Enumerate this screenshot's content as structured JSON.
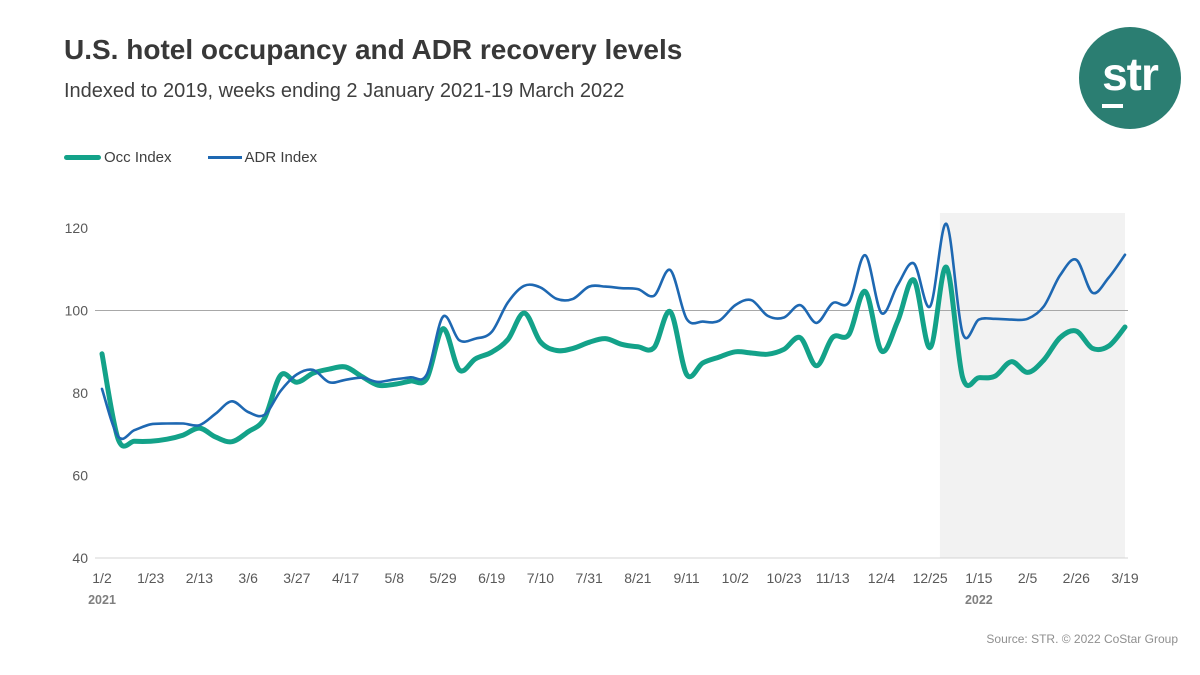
{
  "header": {
    "title": "U.S. hotel occupancy and ADR recovery levels",
    "subtitle": "Indexed to 2019, weeks ending 2 January 2021-19 March 2022"
  },
  "logo": {
    "text": "str",
    "color": "#2b7e72"
  },
  "legend": [
    {
      "label": "Occ Index",
      "color": "#13a289"
    },
    {
      "label": "ADR Index",
      "color": "#1e68b2"
    }
  ],
  "footer": {
    "source": "Source: STR. © 2022 CoStar Group"
  },
  "chart_data": {
    "type": "line",
    "title": "U.S. hotel occupancy and ADR recovery levels",
    "subtitle": "Indexed to 2019, weeks ending 2 January 2021-19 March 2022",
    "xlabel": "",
    "ylabel": "",
    "ylim": [
      40,
      125
    ],
    "y_ticks": [
      40,
      60,
      80,
      100,
      120
    ],
    "reference_line": 100,
    "grid": "reference line at 100 only",
    "legend_position": "top-left",
    "x_unit": "week ending, one point per week",
    "tick_every_n_weeks": 3,
    "x_tick_labels": [
      "1/2",
      "1/23",
      "2/13",
      "3/6",
      "3/27",
      "4/17",
      "5/8",
      "5/29",
      "6/19",
      "7/10",
      "7/31",
      "8/21",
      "9/11",
      "10/2",
      "10/23",
      "11/13",
      "12/4",
      "12/25",
      "1/15",
      "2/5",
      "2/26",
      "3/19"
    ],
    "year_markers": [
      {
        "label": "2021",
        "tick_index": 0
      },
      {
        "label": "2022",
        "tick_index": 18
      }
    ],
    "shaded_region": {
      "start_week": 51.6,
      "end_week": 63,
      "color": "#f2f2f2",
      "label": "2022"
    },
    "series": [
      {
        "name": "Occ Index",
        "color": "#13a289",
        "stroke_width": 5,
        "values": [
          89.5,
          68.8,
          68.3,
          68.3,
          68.8,
          69.8,
          71.5,
          69.3,
          68.2,
          70.6,
          73.8,
          84.3,
          82.6,
          84.8,
          85.8,
          86.3,
          84.0,
          81.9,
          82.1,
          82.9,
          83.5,
          95.6,
          85.6,
          88.3,
          89.9,
          93.0,
          99.4,
          92.4,
          90.3,
          90.8,
          92.3,
          93.2,
          91.8,
          91.2,
          91.0,
          99.7,
          84.5,
          87.3,
          88.7,
          90.0,
          89.7,
          89.4,
          90.6,
          93.4,
          86.6,
          93.5,
          94.2,
          104.6,
          90.2,
          97.4,
          107.4,
          91.0,
          110.5,
          83.8,
          83.7,
          84.1,
          87.6,
          85.0,
          88.0,
          93.4,
          95.0,
          90.8,
          91.4,
          96.0
        ]
      },
      {
        "name": "ADR Index",
        "color": "#1e68b2",
        "stroke_width": 2.6,
        "values": [
          81.0,
          69.4,
          71.0,
          72.4,
          72.6,
          72.6,
          72.2,
          75.0,
          78.0,
          75.4,
          74.7,
          80.5,
          84.5,
          85.6,
          82.6,
          83.2,
          83.7,
          82.7,
          83.3,
          83.8,
          84.5,
          98.5,
          92.8,
          93.2,
          94.8,
          102.0,
          106.0,
          105.6,
          102.8,
          102.8,
          105.8,
          105.8,
          105.4,
          105.2,
          103.6,
          109.8,
          98.0,
          97.3,
          97.5,
          101.3,
          102.5,
          98.7,
          98.3,
          101.3,
          97.0,
          101.8,
          102.0,
          113.4,
          99.4,
          106.2,
          111.4,
          101.0,
          121.0,
          94.5,
          97.8,
          98.0,
          97.8,
          98.0,
          101.0,
          108.5,
          112.3,
          104.3,
          108.0,
          113.5
        ]
      }
    ],
    "axis_colors": {
      "tick_text": "#595959",
      "year_text": "#7f7f7f",
      "ref_line": "#a8a8a8",
      "axis_line": "#d4d4d4"
    }
  }
}
